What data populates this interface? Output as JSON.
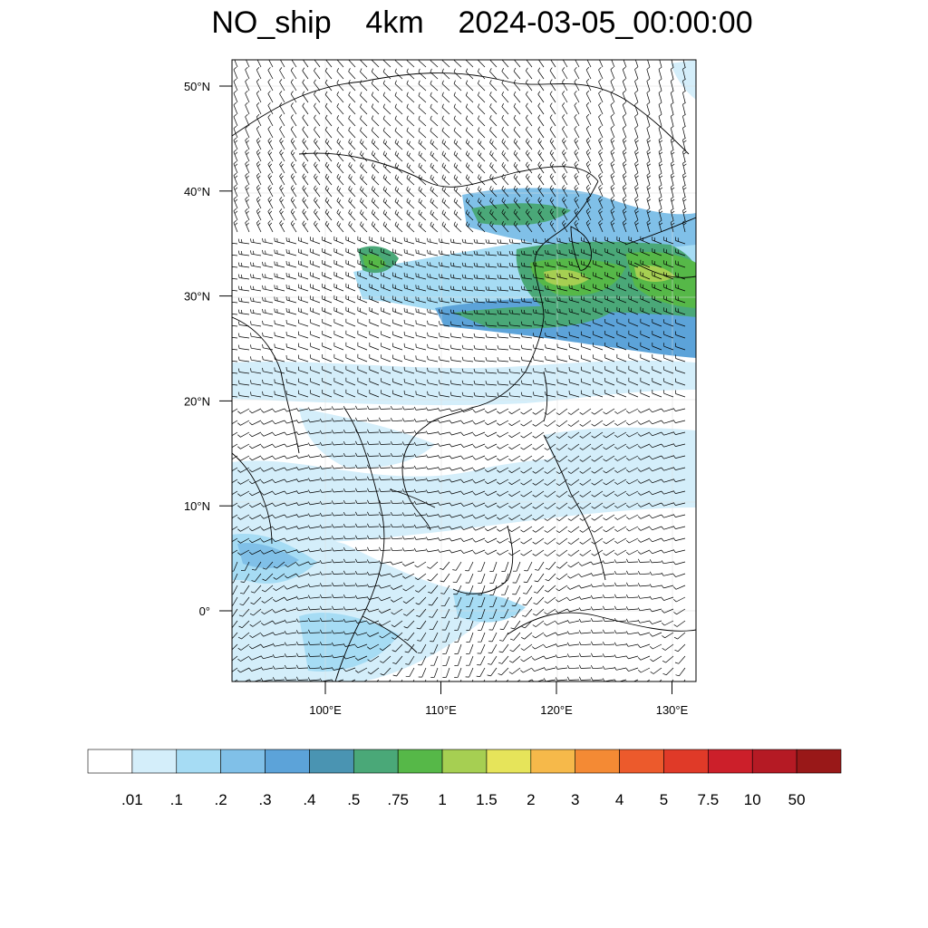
{
  "title": "NO_ship    4km    2024-03-05_00:00:00",
  "map": {
    "lon_range": [
      92,
      132
    ],
    "lat_range": [
      -7,
      52
    ],
    "lat_ticks": [
      {
        "value": 50,
        "label": "50°N"
      },
      {
        "value": 40,
        "label": "40°N"
      },
      {
        "value": 30,
        "label": "30°N"
      },
      {
        "value": 20,
        "label": "20°N"
      },
      {
        "value": 10,
        "label": "10°N"
      },
      {
        "value": 0,
        "label": "0°"
      }
    ],
    "lon_ticks": [
      {
        "value": 100,
        "label": "100°E"
      },
      {
        "value": 110,
        "label": "110°E"
      },
      {
        "value": 120,
        "label": "120°E"
      },
      {
        "value": 130,
        "label": "130°E"
      }
    ],
    "overlay": "wind-barbs",
    "region": "East Asia"
  },
  "colorbar": {
    "labels": [
      ".01",
      ".1",
      ".2",
      ".3",
      ".4",
      ".5",
      ".75",
      "1",
      "1.5",
      "2",
      "3",
      "4",
      "5",
      "7.5",
      "10",
      "50"
    ],
    "colors": [
      "#ffffff",
      "#d4eefa",
      "#a6dcf4",
      "#80c0e8",
      "#5ca3d9",
      "#4a94b2",
      "#4aa878",
      "#56b848",
      "#a6cf52",
      "#e6e45a",
      "#f6b94a",
      "#f48a34",
      "#ec5a2c",
      "#e03a28",
      "#cc1f2a",
      "#b51a24",
      "#991818"
    ]
  }
}
